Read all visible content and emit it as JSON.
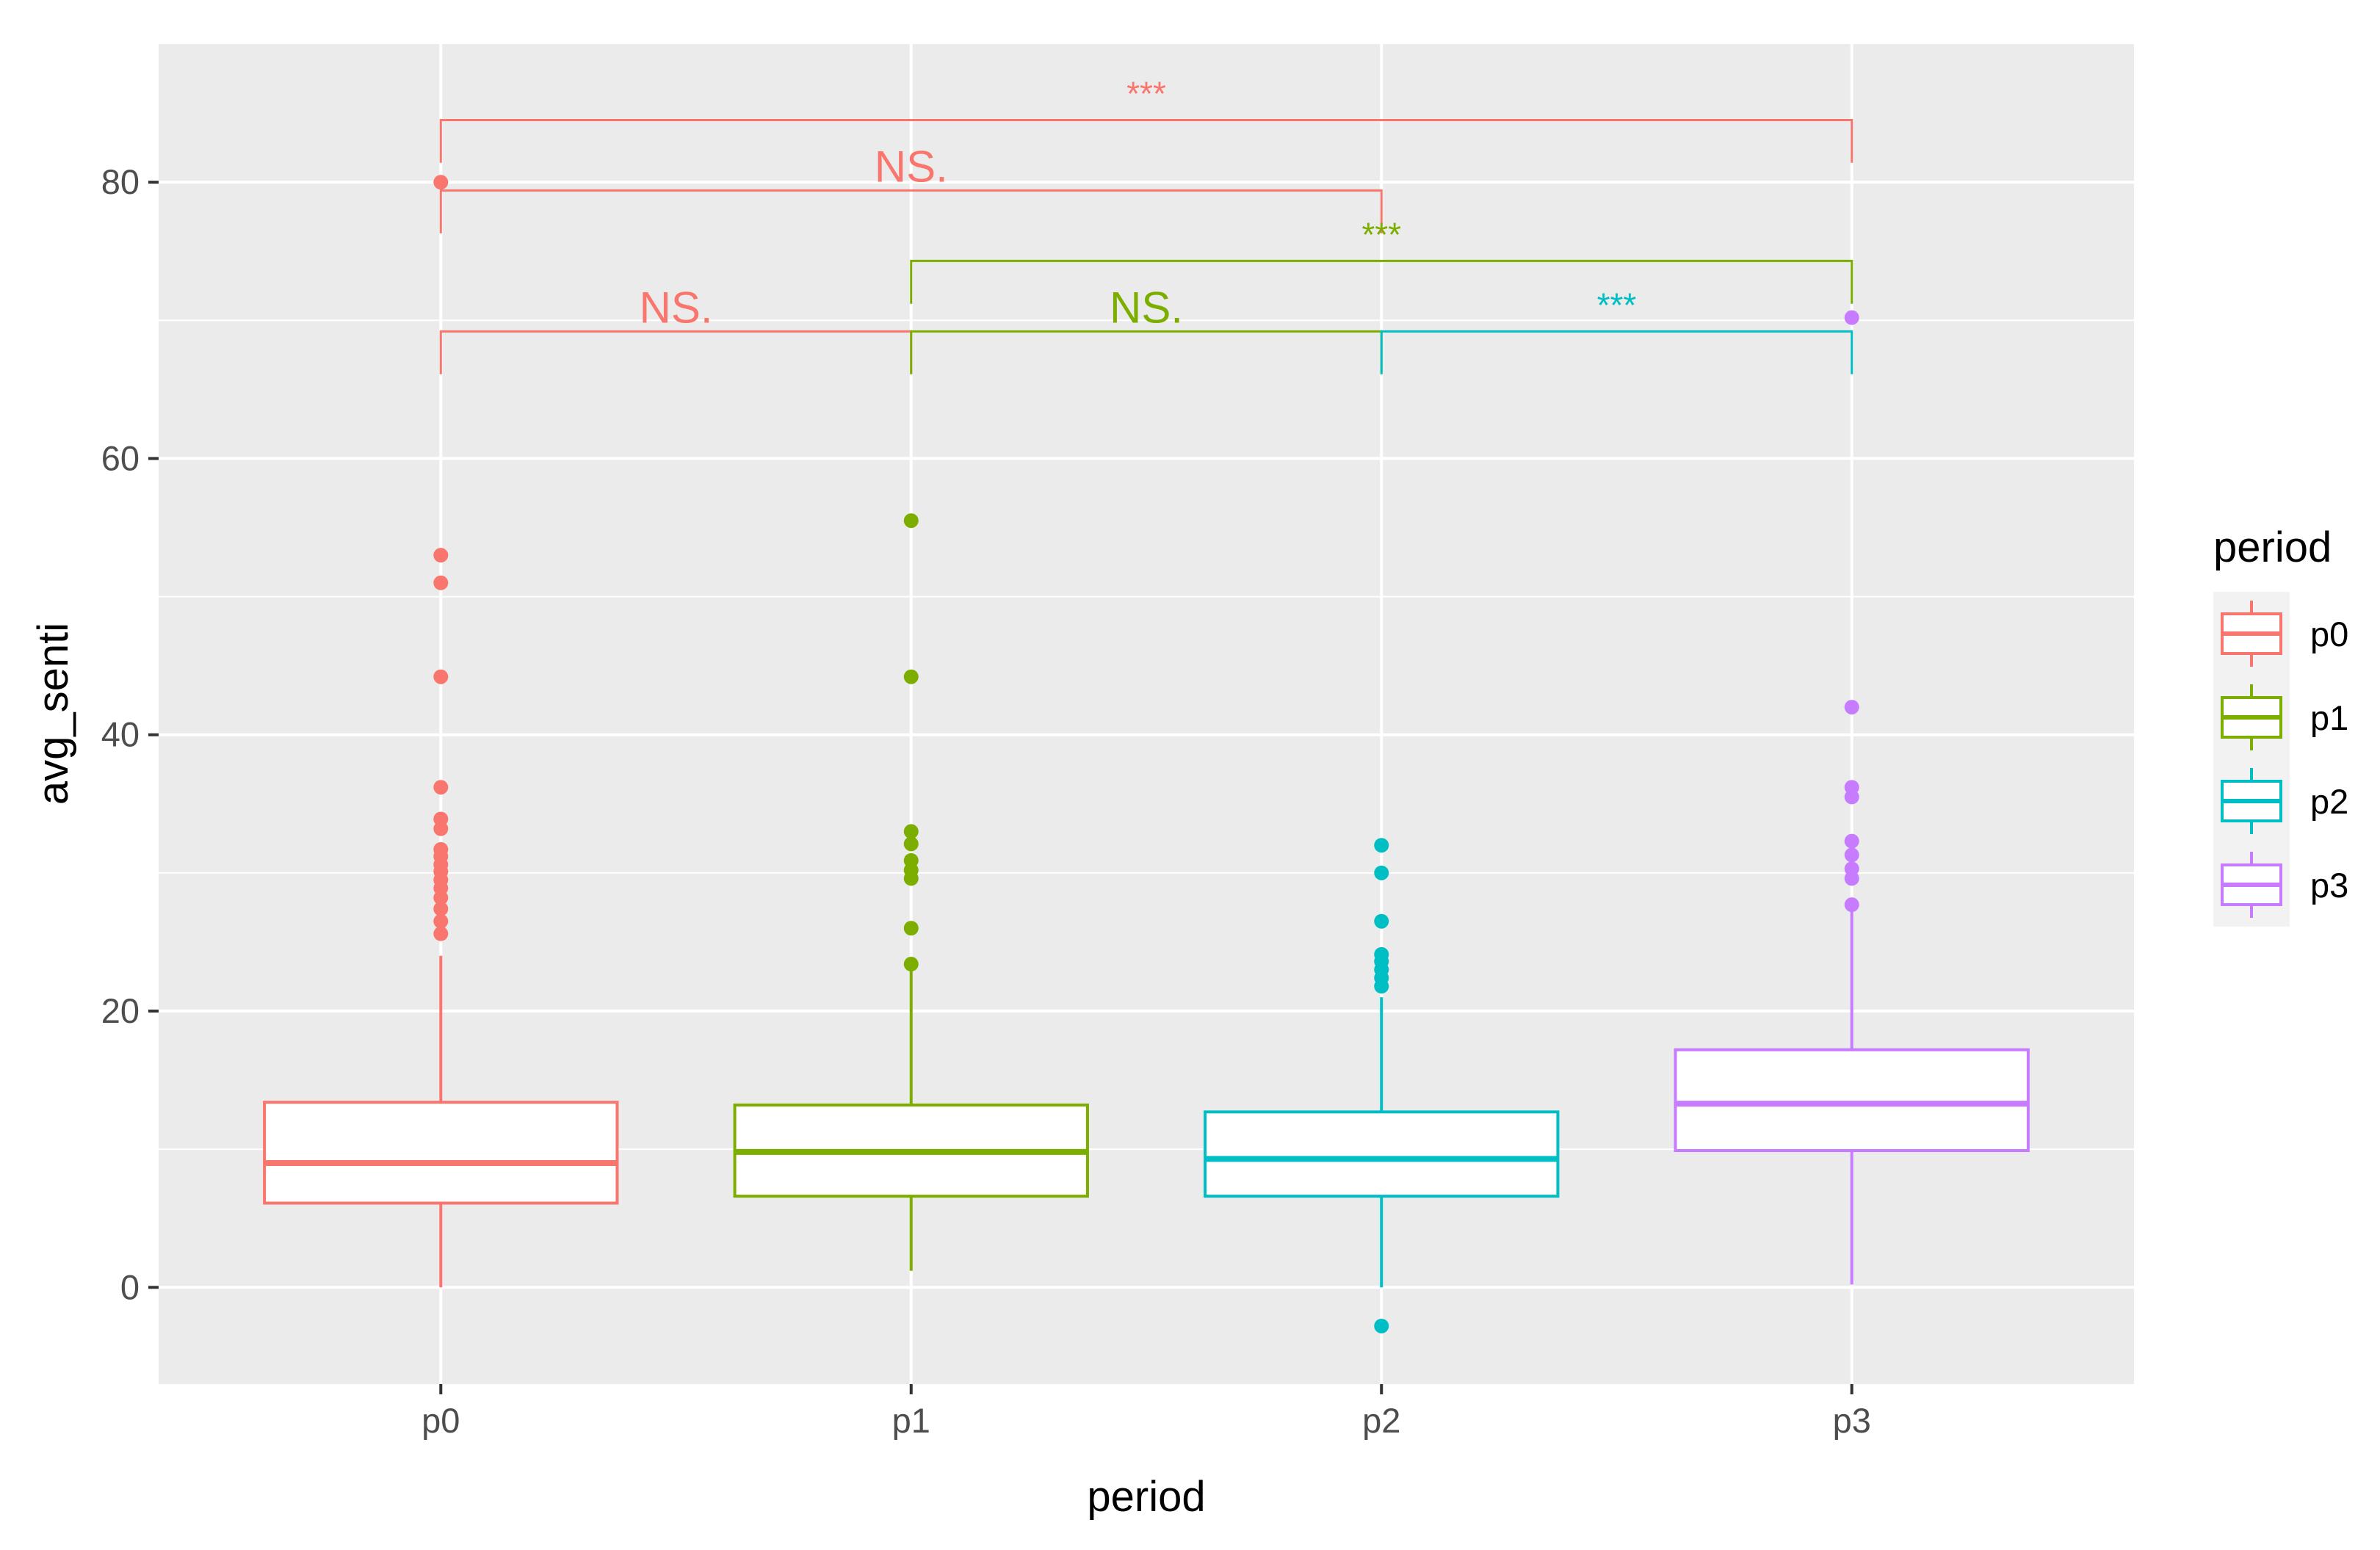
{
  "chart_data": {
    "type": "boxplot",
    "title": "",
    "xlabel": "period",
    "ylabel": "avg_senti",
    "categories": [
      "p0",
      "p1",
      "p2",
      "p3"
    ],
    "ylim": [
      -7,
      90
    ],
    "yticks": [
      0,
      20,
      40,
      60,
      80
    ],
    "ytick_labels": [
      "0",
      "20",
      "40",
      "60",
      "80"
    ],
    "colors": {
      "p0": "#F8766D",
      "p1": "#7CAE00",
      "p2": "#00BFC4",
      "p3": "#C77CFF"
    },
    "series": [
      {
        "name": "p0",
        "whisker_low": 0,
        "q1": 6.1,
        "median": 9.0,
        "q3": 13.4,
        "whisker_high": 24,
        "outliers": [
          25.6,
          26.5,
          27.4,
          28.2,
          28.9,
          29.5,
          30.1,
          30.6,
          31.2,
          31.7,
          33.2,
          33.9,
          36.2,
          44.2,
          51.0,
          53.0,
          80.0
        ]
      },
      {
        "name": "p1",
        "whisker_low": 1.2,
        "q1": 6.6,
        "median": 9.8,
        "q3": 13.2,
        "whisker_high": 23,
        "outliers": [
          23.4,
          26.0,
          29.6,
          30.2,
          30.9,
          32.1,
          33.0,
          44.2,
          55.5
        ]
      },
      {
        "name": "p2",
        "whisker_low": 0,
        "q1": 6.6,
        "median": 9.3,
        "q3": 12.7,
        "whisker_high": 21,
        "outliers": [
          -2.8,
          21.8,
          22.4,
          23.0,
          23.6,
          24.1,
          26.5,
          30.0,
          32.0
        ]
      },
      {
        "name": "p3",
        "whisker_low": 0.2,
        "q1": 9.9,
        "median": 13.3,
        "q3": 17.2,
        "whisker_high": 27.4,
        "outliers": [
          27.7,
          29.6,
          30.3,
          31.3,
          32.3,
          35.5,
          36.2,
          42.0,
          70.2
        ]
      }
    ],
    "annotations": [
      {
        "group1": "p0",
        "group2": "p3",
        "y": 84.5,
        "label": "***",
        "color": "#F8766D"
      },
      {
        "group1": "p0",
        "group2": "p2",
        "y": 79.4,
        "label": "NS.",
        "color": "#F8766D"
      },
      {
        "group1": "p1",
        "group2": "p3",
        "y": 74.3,
        "label": "***",
        "color": "#7CAE00"
      },
      {
        "group1": "p0",
        "group2": "p1",
        "y": 69.2,
        "label": "NS.",
        "color": "#F8766D"
      },
      {
        "group1": "p1",
        "group2": "p2",
        "y": 69.2,
        "label": "NS.",
        "color": "#7CAE00"
      },
      {
        "group1": "p2",
        "group2": "p3",
        "y": 69.2,
        "label": "***",
        "color": "#00BFC4"
      }
    ],
    "legend": {
      "title": "period",
      "position": "right",
      "entries": [
        "p0",
        "p1",
        "p2",
        "p3"
      ]
    }
  }
}
